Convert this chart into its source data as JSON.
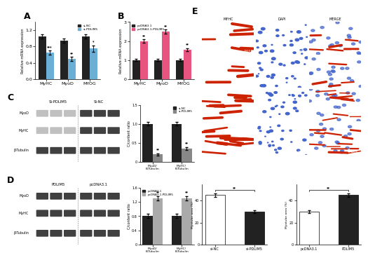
{
  "panel_A": {
    "categories": [
      "MyHC",
      "MyoD",
      "MYOG"
    ],
    "si_NC": [
      1.05,
      0.95,
      1.05
    ],
    "si_PDLIM5": [
      0.65,
      0.5,
      0.75
    ],
    "si_NC_err": [
      0.05,
      0.05,
      0.05
    ],
    "si_PDLIM5_err": [
      0.05,
      0.05,
      0.08
    ],
    "color_NC": "#222222",
    "color_PDLIM5": "#6baed6",
    "ylabel": "Relative mRNA expression",
    "ylim": [
      0,
      1.4
    ],
    "yticks": [
      0.0,
      0.4,
      0.8,
      1.2
    ],
    "significance": [
      "***",
      "**",
      "*"
    ]
  },
  "panel_B": {
    "categories": [
      "MyHC",
      "MyoD",
      "MYOG"
    ],
    "pcDNA31": [
      1.0,
      1.0,
      1.0
    ],
    "pcDNA31_PDLIM5": [
      2.0,
      2.5,
      1.55
    ],
    "pcDNA31_err": [
      0.05,
      0.05,
      0.05
    ],
    "pcDNA31_PDLIM5_err": [
      0.1,
      0.1,
      0.08
    ],
    "color_pcDNA31": "#222222",
    "color_PDLIM5": "#e75480",
    "ylabel": "Relative mRNA expression",
    "ylim": [
      0,
      3.0
    ],
    "yticks": [
      0,
      1,
      2,
      3
    ],
    "significance": [
      "**",
      "**",
      "**"
    ]
  },
  "panel_C_bar": {
    "groups": [
      "MyoD/\nB-Tubulin",
      "MyHC/\nB-Tubulin"
    ],
    "si_NC_vals": [
      1.0,
      1.0
    ],
    "si_PDLIM5_vals": [
      0.2,
      0.35
    ],
    "si_NC_err": [
      0.05,
      0.05
    ],
    "si_PDLIM5_err": [
      0.03,
      0.04
    ],
    "color_NC": "#222222",
    "color_PDLIM5": "#888888",
    "ylabel": "C/content ratio",
    "ylim": [
      0,
      1.5
    ],
    "significance": [
      "**",
      "**"
    ]
  },
  "panel_D_bar": {
    "groups": [
      "MyoD/\nB-Tubulin",
      "MyHC/\nB-Tubulin"
    ],
    "pcDNA31_vals": [
      0.8,
      0.8
    ],
    "PDLIM5_vals": [
      1.3,
      1.3
    ],
    "pcDNA31_err": [
      0.06,
      0.06
    ],
    "PDLIM5_err": [
      0.06,
      0.06
    ],
    "color_pcDNA31": "#222222",
    "color_PDLIM5": "#aaaaaa",
    "ylabel": "C/content ratio",
    "ylim": [
      0,
      1.6
    ],
    "significance": [
      "**",
      "**"
    ]
  },
  "panel_E_bottom_left": {
    "categories": [
      "si-NC",
      "si-PDLIM5"
    ],
    "values": [
      45,
      30
    ],
    "errors": [
      1.5,
      1.5
    ],
    "bar_colors": [
      "#ffffff",
      "#222222"
    ],
    "ylabel": "Myotube area (%)",
    "ylim": [
      0,
      55
    ],
    "significance": "**"
  },
  "panel_E_bottom_right": {
    "categories": [
      "pcDNA3.1",
      "PDLIM5"
    ],
    "values": [
      30,
      45
    ],
    "errors": [
      1.5,
      1.5
    ],
    "bar_colors": [
      "#ffffff",
      "#222222"
    ],
    "ylabel": "Myotube area (%)",
    "ylim": [
      0,
      55
    ],
    "significance": "**"
  },
  "bg_color": "#ffffff",
  "panel_labels_fontsize": 9,
  "axis_fontsize": 5,
  "tick_fontsize": 4.5
}
